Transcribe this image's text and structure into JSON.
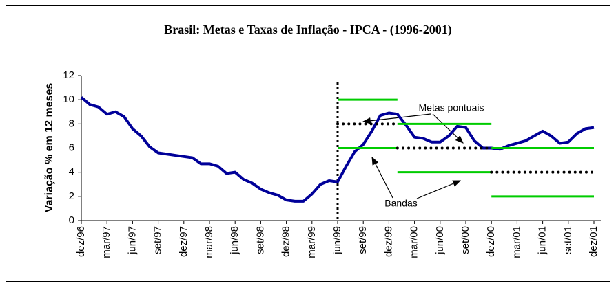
{
  "chart_data": {
    "type": "line",
    "title": "Brasil: Metas e Taxas de Inflação  - IPCA - (1996-2001)",
    "y_label": "Variação % em 12 meses",
    "categories": [
      "dez/96",
      null,
      null,
      "mar/97",
      null,
      null,
      "jun/97",
      null,
      null,
      "set/97",
      null,
      null,
      "dez/97",
      null,
      null,
      "mar/98",
      null,
      null,
      "jun/98",
      null,
      null,
      "set/98",
      null,
      null,
      "dez/98",
      null,
      null,
      "mar/99",
      null,
      null,
      "jun/99",
      null,
      null,
      "set/99",
      null,
      null,
      "dez/99",
      null,
      null,
      "mar/00",
      null,
      null,
      "jun/00",
      null,
      null,
      "set/00",
      null,
      null,
      "dez/00",
      null,
      null,
      "mar/01",
      null,
      null,
      "jun/01",
      null,
      null,
      "set/01",
      null,
      null,
      "dez/01"
    ],
    "ylim": [
      0,
      12
    ],
    "yticks": [
      0,
      2,
      4,
      6,
      8,
      10,
      12
    ],
    "vertical_line": "jun/99",
    "annotations": {
      "targets": "Metas pontuais",
      "bands": "Bandas"
    },
    "series": [
      {
        "color": "#000099",
        "style": "solid",
        "width": 4,
        "values": [
          10.2,
          9.6,
          9.4,
          8.8,
          9.0,
          8.6,
          7.6,
          7.0,
          6.1,
          5.6,
          5.5,
          5.4,
          5.3,
          5.2,
          4.7,
          4.7,
          4.5,
          3.9,
          4.0,
          3.4,
          3.1,
          2.6,
          2.3,
          2.1,
          1.7,
          1.6,
          1.6,
          2.2,
          3.0,
          3.3,
          3.2,
          4.5,
          5.7,
          6.3,
          7.4,
          8.7,
          8.9,
          8.8,
          7.9,
          6.9,
          6.8,
          6.5,
          6.5,
          7.0,
          7.8,
          7.7,
          6.6,
          6.0,
          6.0,
          5.9,
          6.2,
          6.4,
          6.6,
          7.0,
          7.4,
          7.0,
          6.4,
          6.5,
          7.2,
          7.6,
          7.7
        ]
      },
      {
        "color": "#00cc00",
        "style": "solid",
        "width": 3,
        "values": [
          null,
          null,
          null,
          null,
          null,
          null,
          null,
          null,
          null,
          null,
          null,
          null,
          null,
          null,
          null,
          null,
          null,
          null,
          null,
          null,
          null,
          null,
          null,
          null,
          null,
          null,
          null,
          null,
          null,
          null,
          10,
          10,
          10,
          10,
          10,
          10,
          10,
          10,
          null,
          null,
          null,
          null,
          null,
          null,
          null,
          null,
          null,
          null,
          null,
          null,
          null,
          null,
          null,
          null,
          null,
          null,
          null,
          null,
          null,
          null,
          null
        ]
      },
      {
        "color": "#000000",
        "style": "dotted",
        "width": 4,
        "values": [
          null,
          null,
          null,
          null,
          null,
          null,
          null,
          null,
          null,
          null,
          null,
          null,
          null,
          null,
          null,
          null,
          null,
          null,
          null,
          null,
          null,
          null,
          null,
          null,
          null,
          null,
          null,
          null,
          null,
          null,
          8,
          8,
          8,
          8,
          8,
          8,
          8,
          8,
          null,
          null,
          null,
          null,
          null,
          null,
          null,
          null,
          null,
          null,
          null,
          null,
          null,
          null,
          null,
          null,
          null,
          null,
          null,
          null,
          null,
          null,
          null
        ]
      },
      {
        "color": "#00cc00",
        "style": "solid",
        "width": 3,
        "values": [
          null,
          null,
          null,
          null,
          null,
          null,
          null,
          null,
          null,
          null,
          null,
          null,
          null,
          null,
          null,
          null,
          null,
          null,
          null,
          null,
          null,
          null,
          null,
          null,
          null,
          null,
          null,
          null,
          null,
          null,
          6,
          6,
          6,
          6,
          6,
          6,
          6,
          6,
          null,
          null,
          null,
          null,
          null,
          null,
          null,
          null,
          null,
          null,
          null,
          null,
          null,
          null,
          null,
          null,
          null,
          null,
          null,
          null,
          null,
          null,
          null
        ]
      },
      {
        "color": "#00cc00",
        "style": "solid",
        "width": 3,
        "values": [
          null,
          null,
          null,
          null,
          null,
          null,
          null,
          null,
          null,
          null,
          null,
          null,
          null,
          null,
          null,
          null,
          null,
          null,
          null,
          null,
          null,
          null,
          null,
          null,
          null,
          null,
          null,
          null,
          null,
          null,
          null,
          null,
          null,
          null,
          null,
          null,
          null,
          8,
          8,
          8,
          8,
          8,
          8,
          8,
          8,
          8,
          8,
          8,
          8,
          null,
          null,
          null,
          null,
          null,
          null,
          null,
          null,
          null,
          null,
          null,
          null
        ]
      },
      {
        "color": "#000000",
        "style": "dotted",
        "width": 4,
        "values": [
          null,
          null,
          null,
          null,
          null,
          null,
          null,
          null,
          null,
          null,
          null,
          null,
          null,
          null,
          null,
          null,
          null,
          null,
          null,
          null,
          null,
          null,
          null,
          null,
          null,
          null,
          null,
          null,
          null,
          null,
          null,
          null,
          null,
          null,
          null,
          null,
          null,
          6,
          6,
          6,
          6,
          6,
          6,
          6,
          6,
          6,
          6,
          6,
          6,
          null,
          null,
          null,
          null,
          null,
          null,
          null,
          null,
          null,
          null,
          null,
          null
        ]
      },
      {
        "color": "#00cc00",
        "style": "solid",
        "width": 3,
        "values": [
          null,
          null,
          null,
          null,
          null,
          null,
          null,
          null,
          null,
          null,
          null,
          null,
          null,
          null,
          null,
          null,
          null,
          null,
          null,
          null,
          null,
          null,
          null,
          null,
          null,
          null,
          null,
          null,
          null,
          null,
          null,
          null,
          null,
          null,
          null,
          null,
          null,
          4,
          4,
          4,
          4,
          4,
          4,
          4,
          4,
          4,
          4,
          4,
          4,
          null,
          null,
          null,
          null,
          null,
          null,
          null,
          null,
          null,
          null,
          null,
          null
        ]
      },
      {
        "color": "#00cc00",
        "style": "solid",
        "width": 3,
        "values": [
          null,
          null,
          null,
          null,
          null,
          null,
          null,
          null,
          null,
          null,
          null,
          null,
          null,
          null,
          null,
          null,
          null,
          null,
          null,
          null,
          null,
          null,
          null,
          null,
          null,
          null,
          null,
          null,
          null,
          null,
          null,
          null,
          null,
          null,
          null,
          null,
          null,
          null,
          null,
          null,
          null,
          null,
          null,
          null,
          null,
          null,
          null,
          null,
          6,
          6,
          6,
          6,
          6,
          6,
          6,
          6,
          6,
          6,
          6,
          6,
          6
        ]
      },
      {
        "color": "#000000",
        "style": "dotted",
        "width": 4,
        "values": [
          null,
          null,
          null,
          null,
          null,
          null,
          null,
          null,
          null,
          null,
          null,
          null,
          null,
          null,
          null,
          null,
          null,
          null,
          null,
          null,
          null,
          null,
          null,
          null,
          null,
          null,
          null,
          null,
          null,
          null,
          null,
          null,
          null,
          null,
          null,
          null,
          null,
          null,
          null,
          null,
          null,
          null,
          null,
          null,
          null,
          null,
          null,
          null,
          4,
          4,
          4,
          4,
          4,
          4,
          4,
          4,
          4,
          4,
          4,
          4,
          4
        ]
      },
      {
        "color": "#00cc00",
        "style": "solid",
        "width": 3,
        "values": [
          null,
          null,
          null,
          null,
          null,
          null,
          null,
          null,
          null,
          null,
          null,
          null,
          null,
          null,
          null,
          null,
          null,
          null,
          null,
          null,
          null,
          null,
          null,
          null,
          null,
          null,
          null,
          null,
          null,
          null,
          null,
          null,
          null,
          null,
          null,
          null,
          null,
          null,
          null,
          null,
          null,
          null,
          null,
          null,
          null,
          null,
          null,
          null,
          2,
          2,
          2,
          2,
          2,
          2,
          2,
          2,
          2,
          2,
          2,
          2,
          2
        ]
      }
    ]
  }
}
